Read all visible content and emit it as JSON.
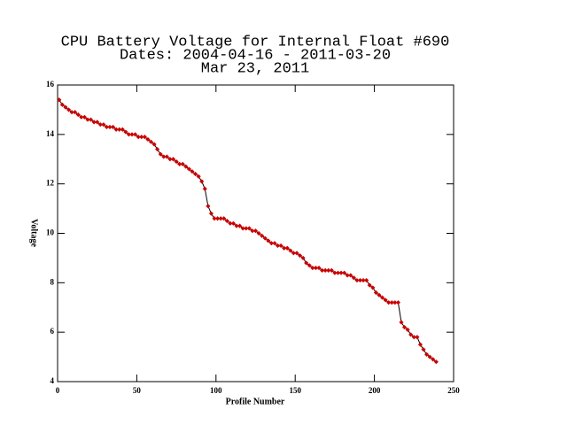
{
  "chart_data": {
    "type": "line",
    "title": [
      "CPU Battery Voltage for Internal Float #690",
      "Dates:  2004-04-16 -  2011-03-20",
      "Mar 23, 2011"
    ],
    "xlabel": "Profile Number",
    "ylabel": "Voltage",
    "x": [
      1,
      3,
      5,
      7,
      9,
      11,
      13,
      15,
      17,
      19,
      21,
      23,
      25,
      27,
      29,
      31,
      33,
      35,
      37,
      39,
      41,
      43,
      45,
      47,
      49,
      51,
      53,
      55,
      57,
      59,
      61,
      63,
      65,
      67,
      69,
      71,
      73,
      75,
      77,
      79,
      81,
      83,
      85,
      87,
      89,
      91,
      93,
      95,
      97,
      99,
      101,
      103,
      105,
      107,
      109,
      111,
      113,
      115,
      117,
      119,
      121,
      123,
      125,
      127,
      129,
      131,
      133,
      135,
      137,
      139,
      141,
      143,
      145,
      147,
      149,
      151,
      153,
      155,
      157,
      159,
      161,
      163,
      165,
      167,
      169,
      171,
      173,
      175,
      177,
      179,
      181,
      183,
      185,
      187,
      189,
      191,
      193,
      195,
      197,
      199,
      201,
      203,
      205,
      207,
      209,
      211,
      213,
      215,
      217,
      219,
      221,
      223,
      225,
      227,
      229,
      231,
      233,
      235,
      237,
      239
    ],
    "series": [
      {
        "color": "#cc0000",
        "line_color": "#000000",
        "values": [
          15.4,
          15.2,
          15.1,
          15.0,
          14.9,
          14.9,
          14.8,
          14.7,
          14.7,
          14.6,
          14.6,
          14.5,
          14.5,
          14.4,
          14.4,
          14.3,
          14.3,
          14.3,
          14.2,
          14.2,
          14.2,
          14.1,
          14.0,
          14.0,
          14.0,
          13.9,
          13.9,
          13.9,
          13.8,
          13.7,
          13.6,
          13.4,
          13.2,
          13.1,
          13.1,
          13.0,
          13.0,
          12.9,
          12.8,
          12.8,
          12.7,
          12.6,
          12.5,
          12.4,
          12.3,
          12.1,
          11.8,
          11.1,
          10.8,
          10.6,
          10.6,
          10.6,
          10.6,
          10.5,
          10.4,
          10.4,
          10.3,
          10.3,
          10.2,
          10.2,
          10.2,
          10.1,
          10.1,
          10.0,
          9.9,
          9.8,
          9.7,
          9.6,
          9.6,
          9.5,
          9.5,
          9.4,
          9.4,
          9.3,
          9.2,
          9.2,
          9.1,
          9.0,
          8.8,
          8.7,
          8.6,
          8.6,
          8.6,
          8.5,
          8.5,
          8.5,
          8.5,
          8.4,
          8.4,
          8.4,
          8.4,
          8.3,
          8.3,
          8.2,
          8.1,
          8.1,
          8.1,
          8.1,
          7.9,
          7.8,
          7.6,
          7.5,
          7.4,
          7.3,
          7.2,
          7.2,
          7.2,
          7.2,
          6.4,
          6.2,
          6.1,
          5.9,
          5.8,
          5.8,
          5.5,
          5.3,
          5.1,
          5.0,
          4.9,
          4.8
        ]
      }
    ],
    "xlim": [
      0,
      250
    ],
    "xticks": [
      0,
      50,
      100,
      150,
      200,
      250
    ],
    "ylim": [
      4,
      16
    ],
    "yticks": [
      4,
      6,
      8,
      10,
      12,
      14,
      16
    ]
  }
}
